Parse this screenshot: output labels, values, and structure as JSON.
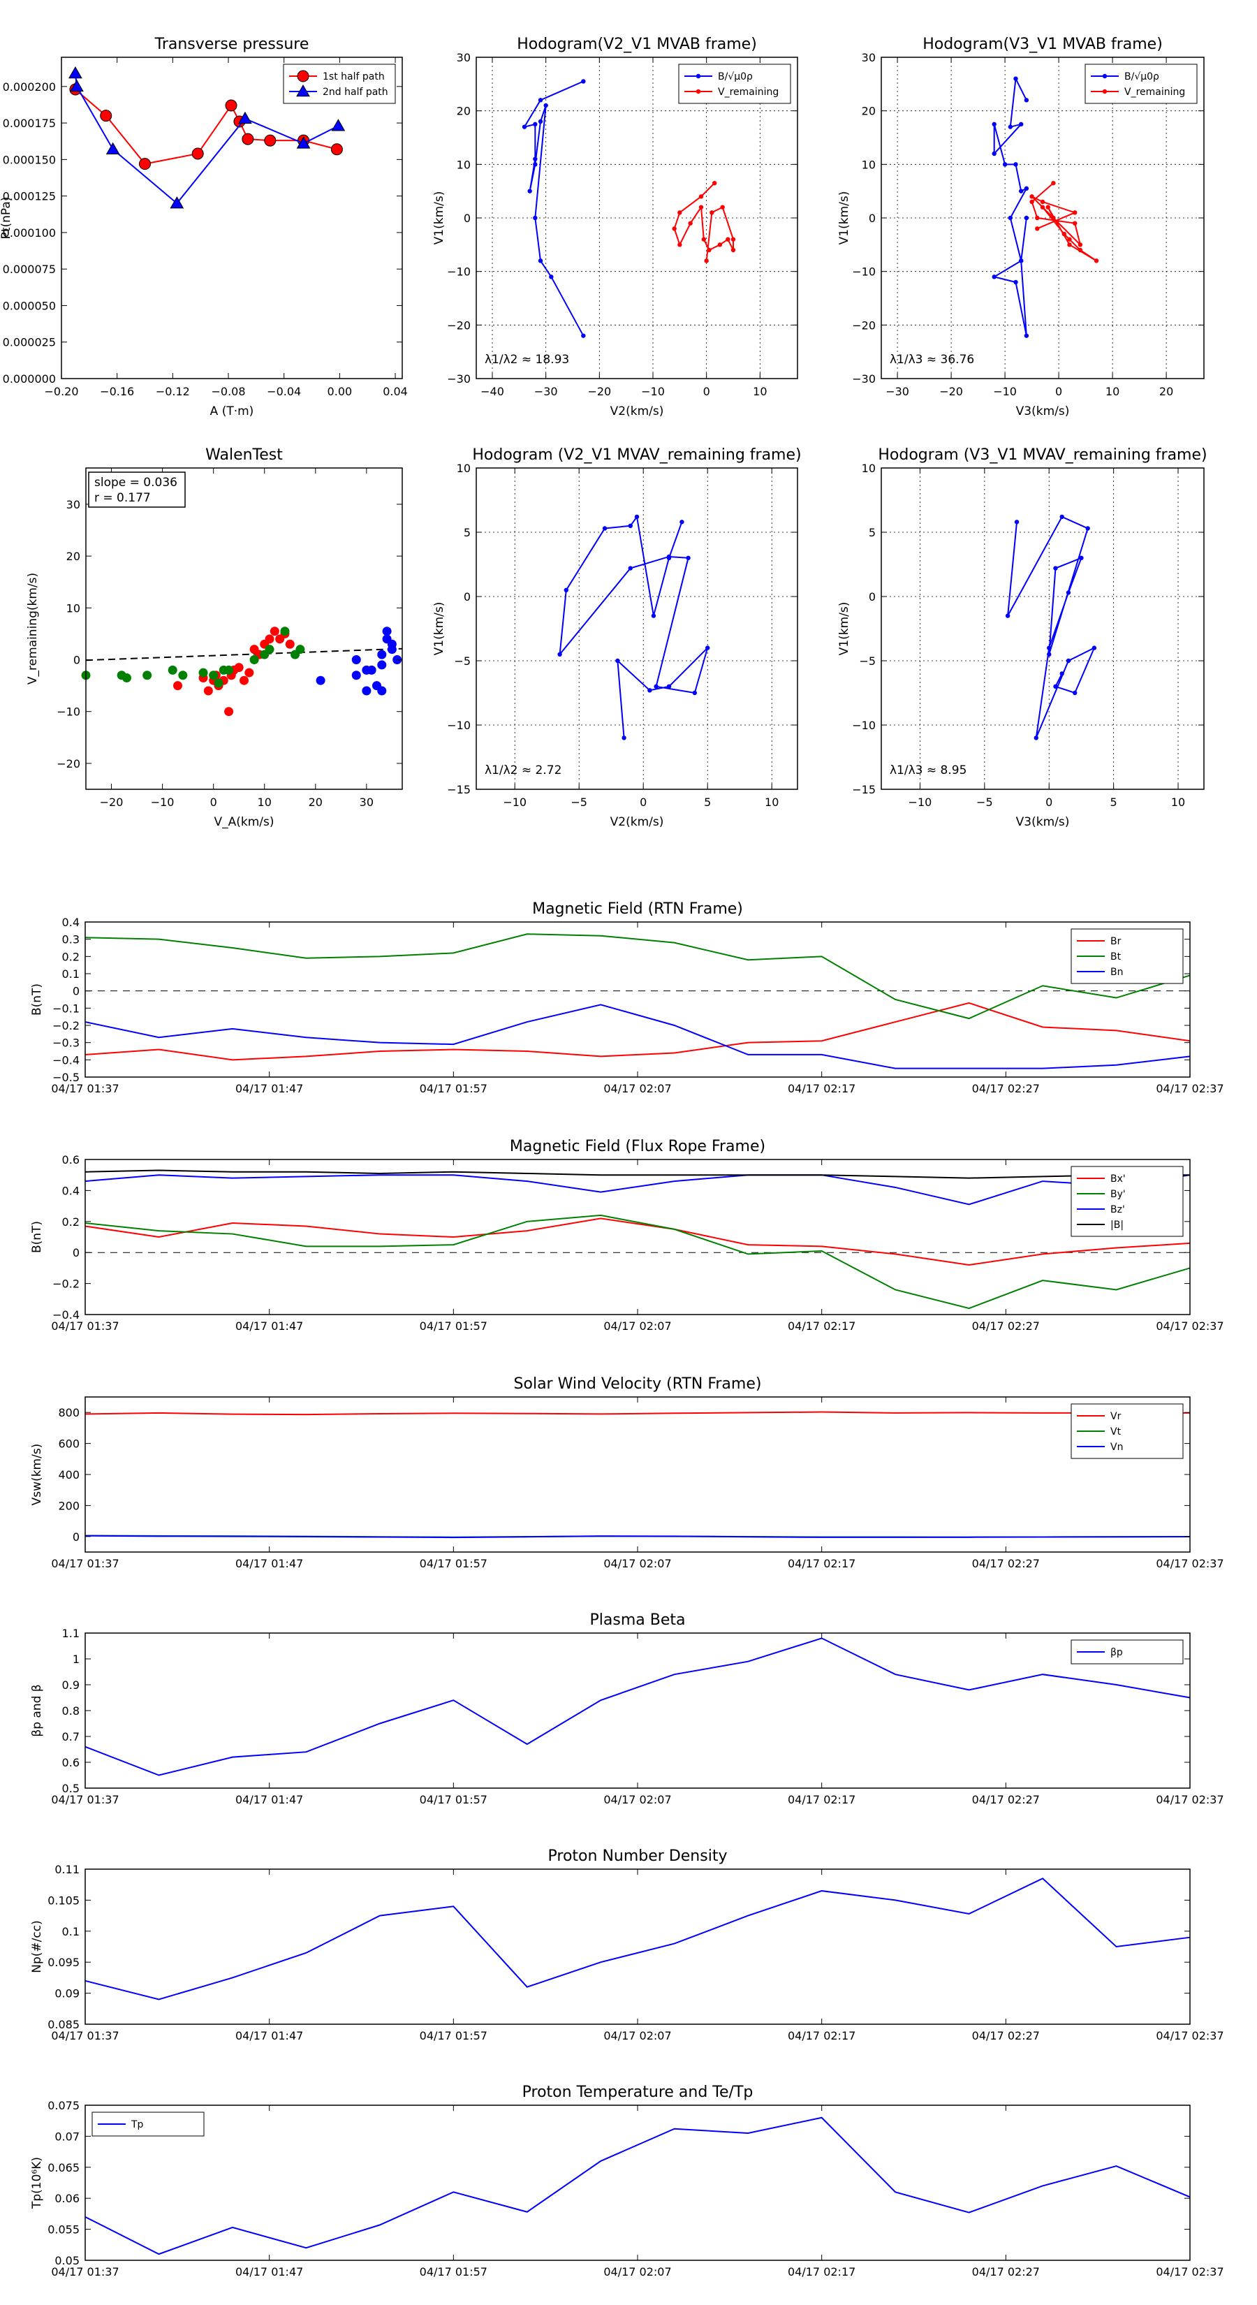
{
  "chart_data": [
    {
      "type": "line",
      "title": "Transverse pressure",
      "xlabel": "A (T·m)",
      "ylabel": "Pt(nPa)",
      "xlim": [
        -0.2,
        0.045
      ],
      "ylim": [
        0,
        0.00022
      ],
      "xticks": [
        -0.2,
        -0.16,
        -0.12,
        -0.08,
        -0.04,
        0.0,
        0.04
      ],
      "xtick_labels": [
        "−0.20",
        "−0.16",
        "−0.12",
        "−0.08",
        "−0.04",
        "0.00",
        "0.04"
      ],
      "yticks": [
        0,
        2.5e-05,
        5e-05,
        7.5e-05,
        0.0001,
        0.000125,
        0.00015,
        0.000175,
        0.0002
      ],
      "ytick_labels": [
        "0.000000",
        "0.000025",
        "0.000050",
        "0.000075",
        "0.000100",
        "0.000125",
        "0.000150",
        "0.000175",
        "0.000200"
      ],
      "legend": "top-right",
      "series": [
        {
          "name": "1st half path",
          "color": "#ff0000",
          "marker": "circle",
          "x": [
            -0.19,
            -0.168,
            -0.14,
            -0.102,
            -0.078,
            -0.072,
            -0.066,
            -0.05,
            -0.026,
            -0.002
          ],
          "y": [
            0.000198,
            0.00018,
            0.000147,
            0.000154,
            0.000187,
            0.000176,
            0.000164,
            0.000163,
            0.000163,
            0.000157
          ]
        },
        {
          "name": "2nd half path",
          "color": "#0000ff",
          "marker": "triangle",
          "x": [
            -0.19,
            -0.189,
            -0.163,
            -0.117,
            -0.068,
            -0.026,
            -0.001
          ],
          "y": [
            0.000209,
            0.0002,
            0.000157,
            0.00012,
            0.000178,
            0.000161,
            0.000173
          ]
        }
      ]
    },
    {
      "type": "scatter",
      "title": "Hodogram(V2_V1 MVAB frame)",
      "xlabel": "V2(km/s)",
      "ylabel": "V1(km/s)",
      "xlim": [
        -43,
        17
      ],
      "ylim": [
        -30,
        30
      ],
      "xticks": [
        -40,
        -30,
        -20,
        -10,
        0,
        10
      ],
      "yticks": [
        -30,
        -20,
        -10,
        0,
        10,
        20,
        30
      ],
      "grid": true,
      "legend": "top-right",
      "annotation": "λ1/λ2 ≈ 18.93",
      "series": [
        {
          "name": "B/√μ0ρ",
          "color": "#0000ff",
          "x": [
            -23,
            -31,
            -34,
            -32,
            -32,
            -33,
            -32,
            -31,
            -30,
            -32,
            -31,
            -29,
            -23
          ],
          "y": [
            25.5,
            22,
            17,
            17.5,
            11,
            5,
            10,
            18,
            21,
            0,
            -8,
            -11,
            -22
          ]
        },
        {
          "name": "V_remaining",
          "color": "#ff0000",
          "x": [
            1.5,
            -1,
            -5,
            -6,
            -5,
            -3,
            -1,
            -0.5,
            0.5,
            2.5,
            4,
            5,
            5,
            3,
            1,
            0
          ],
          "y": [
            6.5,
            4,
            1,
            -2,
            -5,
            -1,
            2,
            -4,
            -6,
            -5,
            -4,
            -6,
            -4,
            2,
            1,
            -8
          ]
        }
      ]
    },
    {
      "type": "scatter",
      "title": "Hodogram(V3_V1 MVAB frame)",
      "xlabel": "V3(km/s)",
      "ylabel": "V1(km/s)",
      "xlim": [
        -33,
        27
      ],
      "ylim": [
        -30,
        30
      ],
      "xticks": [
        -30,
        -20,
        -10,
        0,
        10,
        20
      ],
      "yticks": [
        -30,
        -20,
        -10,
        0,
        10,
        20,
        30
      ],
      "grid": true,
      "legend": "top-right",
      "annotation": "λ1/λ3 ≈ 36.76",
      "series": [
        {
          "name": "B/√μ0ρ",
          "color": "#0000ff",
          "x": [
            -6,
            -8,
            -9,
            -7,
            -12,
            -12,
            -10,
            -8,
            -7,
            -6,
            -9,
            -7,
            -6,
            -8,
            -12,
            -7,
            -6
          ],
          "y": [
            22,
            26,
            17,
            17.5,
            12,
            17.5,
            10,
            10,
            5,
            5.5,
            0,
            -8,
            -22,
            -12,
            -11,
            -8,
            0
          ]
        },
        {
          "name": "V_remaining",
          "color": "#ff0000",
          "x": [
            -1,
            -5,
            -4,
            3,
            4,
            -3,
            1,
            2,
            4,
            7,
            2,
            -2,
            -1,
            -5,
            -3,
            3,
            -4
          ],
          "y": [
            6.5,
            3,
            0,
            -1,
            -5,
            2,
            -3,
            -4,
            -6,
            -8,
            -5,
            2,
            0,
            4,
            3,
            1,
            -2
          ]
        }
      ]
    },
    {
      "type": "scatter",
      "title": "WalenTest",
      "xlabel": "V_A(km/s)",
      "ylabel": "V_remaining(km/s)",
      "xlim": [
        -25,
        37
      ],
      "ylim": [
        -25,
        37
      ],
      "xticks": [
        -20,
        -10,
        0,
        10,
        20,
        30
      ],
      "yticks": [
        -20,
        -10,
        0,
        10,
        20,
        30
      ],
      "annotation_lines": [
        "slope = 0.036",
        "r = 0.177"
      ],
      "fit_line": {
        "slope": 0.036,
        "intercept": 0.8
      },
      "series": [
        {
          "name": "",
          "color": "#ff0000",
          "x": [
            -7,
            -2,
            -1,
            0,
            0.5,
            1,
            2,
            3,
            3.5,
            4,
            5,
            6,
            7,
            8,
            9,
            10,
            11,
            12,
            13,
            14,
            15
          ],
          "y": [
            -5,
            -3.5,
            -6,
            -4,
            -3,
            -5,
            -4,
            -10,
            -3,
            -2,
            -1.5,
            -4,
            -2.5,
            2,
            1,
            3,
            4,
            5.5,
            4,
            5,
            3
          ]
        },
        {
          "name": "",
          "color": "#008000",
          "x": [
            -25,
            -18,
            -17,
            -13,
            -8,
            -6,
            -2,
            0,
            1,
            2,
            3,
            8,
            10,
            11,
            14,
            16,
            17
          ],
          "y": [
            -3,
            -3,
            -3.5,
            -3,
            -2,
            -3,
            -2.5,
            -3,
            -4.5,
            -2,
            -2,
            0,
            1,
            2,
            5.5,
            1,
            2
          ]
        },
        {
          "name": "",
          "color": "#0000ff",
          "x": [
            21,
            28,
            28,
            30,
            30,
            31,
            32,
            33,
            33,
            33,
            34,
            34,
            35,
            35,
            36
          ],
          "y": [
            -4,
            -3,
            0,
            -6,
            -2,
            -2,
            -5,
            -6,
            -1,
            1,
            5.5,
            4,
            2,
            3,
            0
          ]
        }
      ]
    },
    {
      "type": "line",
      "title": "Hodogram (V2_V1 MVAV_remaining frame)",
      "xlabel": "V2(km/s)",
      "ylabel": "V1(km/s)",
      "xlim": [
        -13,
        12
      ],
      "ylim": [
        -15,
        10
      ],
      "xticks": [
        -10,
        -5,
        0,
        5,
        10
      ],
      "yticks": [
        -15,
        -10,
        -5,
        0,
        5,
        10
      ],
      "grid": true,
      "annotation": "λ1/λ2 ≈ 2.72",
      "series": [
        {
          "name": "",
          "color": "#0000ff",
          "x": [
            3,
            2,
            0.8,
            -0.5,
            -1,
            -3,
            -6,
            -6.5,
            -1,
            2,
            3.5,
            1,
            4,
            5,
            2,
            0.5,
            -2,
            -1.5
          ],
          "y": [
            5.8,
            3,
            -1.5,
            6.2,
            5.5,
            5.3,
            0.5,
            -4.5,
            2.2,
            3.1,
            3,
            -7,
            -7.5,
            -4,
            -7,
            -7.3,
            -5,
            -11
          ]
        }
      ]
    },
    {
      "type": "line",
      "title": "Hodogram (V3_V1 MVAV_remaining frame)",
      "xlabel": "V3(km/s)",
      "ylabel": "V1(km/s)",
      "xlim": [
        -13,
        12
      ],
      "ylim": [
        -15,
        10
      ],
      "xticks": [
        -10,
        -5,
        0,
        5,
        10
      ],
      "yticks": [
        -15,
        -10,
        -5,
        0,
        5,
        10
      ],
      "grid": true,
      "annotation": "λ1/λ3 ≈ 8.95",
      "series": [
        {
          "name": "",
          "color": "#0000ff",
          "x": [
            -2.5,
            -3.2,
            1,
            3,
            0,
            0.5,
            2.5,
            1.5,
            0,
            -1,
            1.5,
            3.5,
            2,
            0.5,
            1
          ],
          "y": [
            5.8,
            -1.5,
            6.2,
            5.3,
            -4.5,
            2.2,
            3,
            0.3,
            -4,
            -11,
            -5,
            -4,
            -7.5,
            -7,
            -6
          ]
        }
      ]
    },
    {
      "type": "line",
      "title": "Magnetic Field (RTN Frame)",
      "ylabel": "B(nT)",
      "x_ticks": [
        "04/17 01:37",
        "04/17 01:47",
        "04/17 01:57",
        "04/17 02:07",
        "04/17 02:17",
        "04/17 02:27",
        "04/17 02:37"
      ],
      "ylim": [
        -0.5,
        0.4
      ],
      "yticks": [
        -0.5,
        -0.4,
        -0.3,
        -0.2,
        -0.1,
        0.0,
        0.1,
        0.2,
        0.3,
        0.4
      ],
      "zero_line": true,
      "legend": "top-right",
      "series": [
        {
          "name": "Br",
          "color": "#ff0000",
          "values": [
            -0.37,
            -0.34,
            -0.4,
            -0.38,
            -0.35,
            -0.34,
            -0.35,
            -0.38,
            -0.36,
            -0.3,
            -0.29,
            -0.18,
            -0.07,
            -0.21,
            -0.23,
            -0.29
          ]
        },
        {
          "name": "Bt",
          "color": "#008000",
          "values": [
            0.31,
            0.3,
            0.25,
            0.19,
            0.2,
            0.22,
            0.33,
            0.32,
            0.28,
            0.18,
            0.2,
            -0.05,
            -0.16,
            0.03,
            -0.04,
            0.09
          ]
        },
        {
          "name": "Bn",
          "color": "#0000ff",
          "values": [
            -0.18,
            -0.27,
            -0.22,
            -0.27,
            -0.3,
            -0.31,
            -0.18,
            -0.08,
            -0.2,
            -0.37,
            -0.37,
            -0.45,
            -0.45,
            -0.45,
            -0.43,
            -0.38
          ]
        }
      ]
    },
    {
      "type": "line",
      "title": "Magnetic Field (Flux Rope Frame)",
      "ylabel": "B(nT)",
      "x_ticks": [
        "04/17 01:37",
        "04/17 01:47",
        "04/17 01:57",
        "04/17 02:07",
        "04/17 02:17",
        "04/17 02:27",
        "04/17 02:37"
      ],
      "ylim": [
        -0.4,
        0.6
      ],
      "yticks": [
        -0.4,
        -0.2,
        0.0,
        0.2,
        0.4,
        0.6
      ],
      "zero_line": true,
      "legend": "top-right",
      "series": [
        {
          "name": "Bx'",
          "color": "#ff0000",
          "values": [
            0.17,
            0.1,
            0.19,
            0.17,
            0.12,
            0.1,
            0.14,
            0.22,
            0.15,
            0.05,
            0.04,
            -0.01,
            -0.08,
            -0.01,
            0.03,
            0.06
          ]
        },
        {
          "name": "By'",
          "color": "#008000",
          "values": [
            0.19,
            0.14,
            0.12,
            0.04,
            0.04,
            0.05,
            0.2,
            0.24,
            0.15,
            -0.01,
            0.01,
            -0.24,
            -0.36,
            -0.18,
            -0.24,
            -0.1
          ]
        },
        {
          "name": "Bz'",
          "color": "#0000ff",
          "values": [
            0.46,
            0.5,
            0.48,
            0.49,
            0.5,
            0.5,
            0.46,
            0.39,
            0.46,
            0.5,
            0.5,
            0.42,
            0.31,
            0.46,
            0.43,
            0.5
          ]
        },
        {
          "name": "|B|",
          "color": "#000000",
          "values": [
            0.52,
            0.53,
            0.52,
            0.52,
            0.51,
            0.52,
            0.51,
            0.5,
            0.5,
            0.5,
            0.5,
            0.49,
            0.48,
            0.49,
            0.5,
            0.5
          ]
        }
      ]
    },
    {
      "type": "line",
      "title": "Solar Wind Velocity (RTN Frame)",
      "ylabel": "Vsw(km/s)",
      "x_ticks": [
        "04/17 01:37",
        "04/17 01:47",
        "04/17 01:57",
        "04/17 02:07",
        "04/17 02:17",
        "04/17 02:27",
        "04/17 02:37"
      ],
      "ylim": [
        -100,
        900
      ],
      "yticks": [
        0,
        200,
        400,
        600,
        800
      ],
      "legend": "top-right",
      "series": [
        {
          "name": "Vr",
          "color": "#ff0000",
          "values": [
            790,
            797,
            789,
            787,
            792,
            795,
            793,
            790,
            795,
            799,
            803,
            797,
            799,
            797,
            796,
            797
          ]
        },
        {
          "name": "Vt",
          "color": "#008000",
          "values": [
            6,
            4,
            3,
            1,
            -2,
            -4,
            -1,
            2,
            1,
            -1,
            -3,
            -3,
            -4,
            -3,
            -2,
            -1
          ]
        },
        {
          "name": "Vn",
          "color": "#0000ff",
          "values": [
            5,
            2,
            1,
            -1,
            -3,
            -6,
            -2,
            3,
            2,
            -2,
            -5,
            -5,
            -4,
            -3,
            -2,
            -1
          ]
        }
      ]
    },
    {
      "type": "line",
      "title": "Plasma Beta",
      "ylabel": "βp and β",
      "x_ticks": [
        "04/17 01:37",
        "04/17 01:47",
        "04/17 01:57",
        "04/17 02:07",
        "04/17 02:17",
        "04/17 02:27",
        "04/17 02:37"
      ],
      "ylim": [
        0.5,
        1.1
      ],
      "yticks": [
        0.5,
        0.6,
        0.7,
        0.8,
        0.9,
        1.0,
        1.1
      ],
      "legend": "top-right",
      "series": [
        {
          "name": "βp",
          "color": "#0000ff",
          "values": [
            0.66,
            0.55,
            0.62,
            0.64,
            0.75,
            0.84,
            0.67,
            0.84,
            0.94,
            0.99,
            1.08,
            0.94,
            0.88,
            0.94,
            0.9,
            0.85
          ]
        }
      ]
    },
    {
      "type": "line",
      "title": "Proton Number Density",
      "ylabel": "Np(#/cc)",
      "x_ticks": [
        "04/17 01:37",
        "04/17 01:47",
        "04/17 01:57",
        "04/17 02:07",
        "04/17 02:17",
        "04/17 02:27",
        "04/17 02:37"
      ],
      "ylim": [
        0.085,
        0.11
      ],
      "yticks": [
        0.085,
        0.09,
        0.095,
        0.1,
        0.105,
        0.11
      ],
      "series": [
        {
          "name": "",
          "color": "#0000ff",
          "values": [
            0.092,
            0.089,
            0.0925,
            0.0965,
            0.1025,
            0.104,
            0.091,
            0.095,
            0.098,
            0.1025,
            0.1065,
            0.105,
            0.1028,
            0.1085,
            0.0975,
            0.099
          ]
        }
      ]
    },
    {
      "type": "line",
      "title": "Proton Temperature and Te/Tp",
      "ylabel": "Tp(10⁶K)",
      "x_ticks": [
        "04/17 01:37",
        "04/17 01:47",
        "04/17 01:57",
        "04/17 02:07",
        "04/17 02:17",
        "04/17 02:27",
        "04/17 02:37"
      ],
      "ylim": [
        0.05,
        0.075
      ],
      "yticks": [
        0.05,
        0.055,
        0.06,
        0.065,
        0.07,
        0.075
      ],
      "legend": "top-left",
      "series": [
        {
          "name": "Tp",
          "color": "#0000ff",
          "values": [
            0.057,
            0.051,
            0.0553,
            0.052,
            0.0557,
            0.061,
            0.0578,
            0.066,
            0.0712,
            0.0705,
            0.073,
            0.061,
            0.0577,
            0.062,
            0.0652,
            0.0602
          ]
        }
      ]
    }
  ]
}
